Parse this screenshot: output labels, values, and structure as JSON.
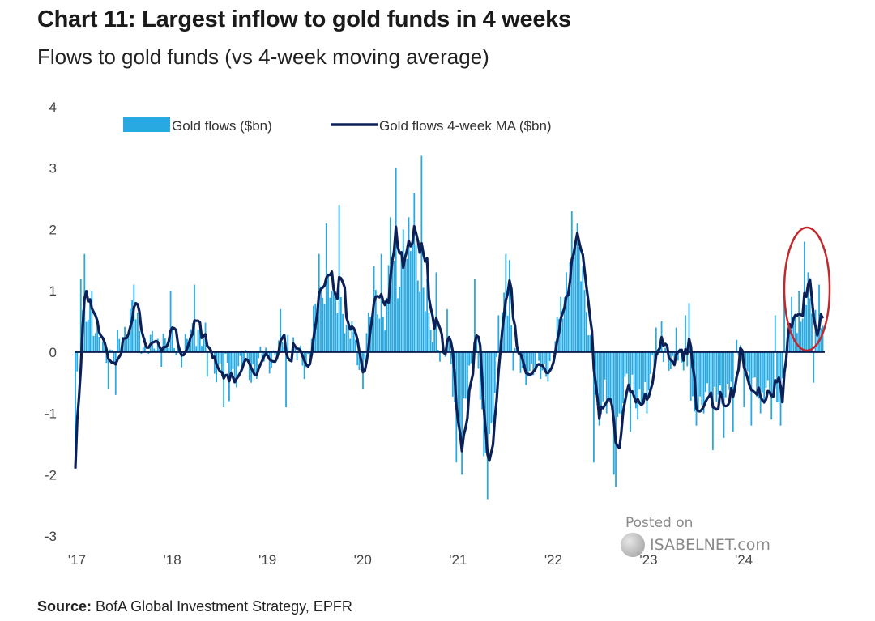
{
  "header": {
    "title": "Chart 11: Largest inflow to gold funds in 4 weeks",
    "subtitle": "Flows to gold funds (vs 4-week moving average)"
  },
  "source": {
    "label": "Source:",
    "text": "BofA Global Investment Strategy, EPFR"
  },
  "watermark": {
    "posted": "Posted on",
    "site": "ISABELNET.com"
  },
  "colors": {
    "bars": "#29a9e1",
    "line": "#0b2056",
    "zero_line": "#0b2056",
    "highlight": "#c0282d"
  },
  "chart_data": {
    "type": "bar",
    "title": "Chart 11: Largest inflow to gold funds in 4 weeks",
    "subtitle": "Flows to gold funds (vs 4-week moving average)",
    "xlabel": "",
    "ylabel": "",
    "ylim": [
      -3,
      4
    ],
    "yticks": [
      "4",
      "3",
      "2",
      "1",
      "0",
      "-1",
      "-2",
      "-3"
    ],
    "xlim": [
      2017,
      2024.85
    ],
    "xticks": [
      "'17",
      "'18",
      "'19",
      "'20",
      "'21",
      "'22",
      "'23",
      "'24"
    ],
    "legend": {
      "placement": "top"
    },
    "annotation": {
      "type": "ellipse-highlight",
      "around": "mid-2024 inflows"
    },
    "anchors": [
      [
        2017.0,
        -1.3
      ],
      [
        2017.03,
        -0.2
      ],
      [
        2017.08,
        0.6
      ],
      [
        2017.15,
        0.85
      ],
      [
        2017.22,
        0.2
      ],
      [
        2017.3,
        0.1
      ],
      [
        2017.4,
        -0.1
      ],
      [
        2017.5,
        0.3
      ],
      [
        2017.6,
        0.7
      ],
      [
        2017.7,
        0.2
      ],
      [
        2017.8,
        0.1
      ],
      [
        2017.9,
        0.05
      ],
      [
        2018.0,
        0.2
      ],
      [
        2018.1,
        0.0
      ],
      [
        2018.2,
        0.2
      ],
      [
        2018.3,
        0.4
      ],
      [
        2018.38,
        0.2
      ],
      [
        2018.45,
        -0.2
      ],
      [
        2018.55,
        -0.3
      ],
      [
        2018.65,
        -0.4
      ],
      [
        2018.75,
        -0.2
      ],
      [
        2018.85,
        -0.3
      ],
      [
        2018.95,
        -0.15
      ],
      [
        2019.05,
        -0.1
      ],
      [
        2019.15,
        0.1
      ],
      [
        2019.25,
        0.3
      ],
      [
        2019.35,
        -0.15
      ],
      [
        2019.42,
        -0.3
      ],
      [
        2019.5,
        0.6
      ],
      [
        2019.58,
        0.9
      ],
      [
        2019.65,
        1.3
      ],
      [
        2019.72,
        0.7
      ],
      [
        2019.8,
        0.8
      ],
      [
        2019.9,
        0.2
      ],
      [
        2020.0,
        -0.3
      ],
      [
        2020.05,
        0.3
      ],
      [
        2020.15,
        0.9
      ],
      [
        2020.25,
        0.6
      ],
      [
        2020.32,
        1.7
      ],
      [
        2020.38,
        1.1
      ],
      [
        2020.45,
        1.9
      ],
      [
        2020.5,
        1.3
      ],
      [
        2020.55,
        2.2
      ],
      [
        2020.6,
        1.4
      ],
      [
        2020.65,
        1.0
      ],
      [
        2020.72,
        0.3
      ],
      [
        2020.78,
        0.5
      ],
      [
        2020.85,
        -0.2
      ],
      [
        2020.92,
        0.1
      ],
      [
        2021.0,
        -1.0
      ],
      [
        2021.05,
        -1.5
      ],
      [
        2021.1,
        -0.7
      ],
      [
        2021.15,
        -0.2
      ],
      [
        2021.2,
        0.4
      ],
      [
        2021.27,
        -1.2
      ],
      [
        2021.32,
        -1.8
      ],
      [
        2021.38,
        -1.0
      ],
      [
        2021.45,
        0.1
      ],
      [
        2021.52,
        1.1
      ],
      [
        2021.58,
        0.4
      ],
      [
        2021.65,
        -0.2
      ],
      [
        2021.72,
        -0.4
      ],
      [
        2021.8,
        -0.3
      ],
      [
        2021.9,
        -0.3
      ],
      [
        2022.0,
        -0.2
      ],
      [
        2022.05,
        0.3
      ],
      [
        2022.1,
        0.6
      ],
      [
        2022.15,
        1.0
      ],
      [
        2022.2,
        1.5
      ],
      [
        2022.27,
        2.0
      ],
      [
        2022.33,
        1.2
      ],
      [
        2022.4,
        0.2
      ],
      [
        2022.45,
        -0.5
      ],
      [
        2022.5,
        -0.9
      ],
      [
        2022.55,
        -0.6
      ],
      [
        2022.6,
        -0.8
      ],
      [
        2022.65,
        -1.4
      ],
      [
        2022.72,
        -0.9
      ],
      [
        2022.8,
        -0.5
      ],
      [
        2022.9,
        -0.7
      ],
      [
        2023.0,
        -0.8
      ],
      [
        2023.05,
        -0.2
      ],
      [
        2023.12,
        0.0
      ],
      [
        2023.2,
        -0.2
      ],
      [
        2023.3,
        -0.1
      ],
      [
        2023.4,
        -0.3
      ],
      [
        2023.45,
        -0.5
      ],
      [
        2023.5,
        -1.0
      ],
      [
        2023.55,
        -1.1
      ],
      [
        2023.6,
        -0.9
      ],
      [
        2023.65,
        -0.5
      ],
      [
        2023.72,
        -0.7
      ],
      [
        2023.8,
        -1.0
      ],
      [
        2023.88,
        -0.3
      ],
      [
        2023.95,
        -0.1
      ],
      [
        2024.02,
        -0.2
      ],
      [
        2024.1,
        -0.6
      ],
      [
        2024.18,
        -0.8
      ],
      [
        2024.25,
        -0.5
      ],
      [
        2024.33,
        -0.9
      ],
      [
        2024.4,
        -0.7
      ],
      [
        2024.47,
        0.2
      ],
      [
        2024.54,
        0.4
      ],
      [
        2024.62,
        0.5
      ],
      [
        2024.68,
        0.9
      ],
      [
        2024.74,
        0.7
      ],
      [
        2024.8,
        0.4
      ]
    ],
    "series": [
      {
        "name": "Gold flows ($bn)",
        "type": "bar",
        "color": "#29a9e1",
        "spikes": [
          [
            2017.0,
            -1.9
          ],
          [
            2017.05,
            1.2
          ],
          [
            2017.09,
            1.6
          ],
          [
            2017.17,
            1.0
          ],
          [
            2017.35,
            -0.6
          ],
          [
            2017.42,
            -0.7
          ],
          [
            2017.62,
            1.1
          ],
          [
            2017.92,
            0.3
          ],
          [
            2018.0,
            1.0
          ],
          [
            2018.25,
            1.1
          ],
          [
            2018.38,
            -0.4
          ],
          [
            2018.55,
            -0.9
          ],
          [
            2018.62,
            -0.8
          ],
          [
            2018.85,
            -0.5
          ],
          [
            2019.15,
            0.7
          ],
          [
            2019.22,
            -0.9
          ],
          [
            2019.55,
            1.6
          ],
          [
            2019.64,
            2.1
          ],
          [
            2019.7,
            1.0
          ],
          [
            2019.77,
            2.4
          ],
          [
            2019.9,
            0.5
          ],
          [
            2020.02,
            -0.6
          ],
          [
            2020.13,
            1.4
          ],
          [
            2020.22,
            1.6
          ],
          [
            2020.31,
            2.2
          ],
          [
            2020.37,
            3.0
          ],
          [
            2020.45,
            2.0
          ],
          [
            2020.5,
            2.2
          ],
          [
            2020.56,
            2.6
          ],
          [
            2020.63,
            3.2
          ],
          [
            2020.7,
            1.2
          ],
          [
            2020.78,
            1.3
          ],
          [
            2020.9,
            0.7
          ],
          [
            2021.0,
            -1.8
          ],
          [
            2021.05,
            -2.0
          ],
          [
            2021.12,
            -0.8
          ],
          [
            2021.2,
            1.2
          ],
          [
            2021.28,
            -1.7
          ],
          [
            2021.33,
            -2.4
          ],
          [
            2021.45,
            0.6
          ],
          [
            2021.52,
            1.6
          ],
          [
            2021.55,
            1.5
          ],
          [
            2021.6,
            -0.3
          ],
          [
            2021.75,
            -0.4
          ],
          [
            2021.9,
            -0.3
          ],
          [
            2022.1,
            0.9
          ],
          [
            2022.15,
            1.3
          ],
          [
            2022.22,
            2.3
          ],
          [
            2022.27,
            2.1
          ],
          [
            2022.32,
            1.4
          ],
          [
            2022.45,
            -1.8
          ],
          [
            2022.5,
            -1.2
          ],
          [
            2022.58,
            -1.0
          ],
          [
            2022.65,
            -2.0
          ],
          [
            2022.68,
            -2.2
          ],
          [
            2022.72,
            -1.0
          ],
          [
            2022.82,
            -1.3
          ],
          [
            2022.9,
            -1.1
          ],
          [
            2023.0,
            -1.0
          ],
          [
            2023.1,
            0.4
          ],
          [
            2023.15,
            0.5
          ],
          [
            2023.3,
            0.4
          ],
          [
            2023.4,
            0.6
          ],
          [
            2023.45,
            0.8
          ],
          [
            2023.52,
            -1.2
          ],
          [
            2023.6,
            -1.0
          ],
          [
            2023.7,
            -1.6
          ],
          [
            2023.8,
            -1.4
          ],
          [
            2023.9,
            -1.3
          ],
          [
            2023.95,
            0.2
          ],
          [
            2024.02,
            -0.9
          ],
          [
            2024.1,
            -1.2
          ],
          [
            2024.2,
            -1.0
          ],
          [
            2024.3,
            -1.1
          ],
          [
            2024.35,
            0.6
          ],
          [
            2024.4,
            -1.2
          ],
          [
            2024.45,
            1.1
          ],
          [
            2024.52,
            0.9
          ],
          [
            2024.6,
            1.0
          ],
          [
            2024.65,
            1.8
          ],
          [
            2024.7,
            1.3
          ],
          [
            2024.75,
            -0.5
          ],
          [
            2024.8,
            1.1
          ]
        ]
      },
      {
        "name": "Gold flows 4-week MA ($bn)",
        "type": "line",
        "color": "#0b2056"
      }
    ]
  }
}
